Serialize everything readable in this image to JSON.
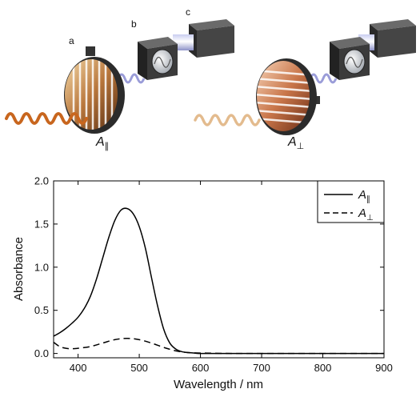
{
  "illustration": {
    "labels": {
      "a": "a",
      "b": "b",
      "c": "c"
    },
    "panels": [
      {
        "symbol": "A",
        "subscript": "∥",
        "wave_color": "#c8661e"
      },
      {
        "symbol": "A",
        "subscript": "⊥",
        "wave_color": "#e3bb8e"
      }
    ]
  },
  "chart_data": {
    "type": "line",
    "title": "",
    "xlabel": "Wavelength / nm",
    "ylabel": "Absorbance",
    "xlim": [
      360,
      900
    ],
    "ylim": [
      -0.05,
      2.0
    ],
    "xticks": [
      400,
      500,
      600,
      700,
      800,
      900
    ],
    "yticks": [
      0.0,
      0.5,
      1.0,
      1.5,
      2.0
    ],
    "ytick_labels": [
      "0.0",
      "0.5",
      "1.0",
      "1.5",
      "2.0"
    ],
    "legend_position": "top-right",
    "series": [
      {
        "name": "A∥",
        "legend_symbol": "A",
        "legend_subscript": "∥",
        "style": "solid",
        "x": [
          360,
          370,
          380,
          390,
          400,
          410,
          420,
          430,
          440,
          450,
          460,
          470,
          480,
          490,
          500,
          510,
          520,
          530,
          540,
          550,
          560,
          570,
          580,
          590,
          600,
          650,
          700,
          750,
          800,
          850,
          900
        ],
        "y": [
          0.2,
          0.24,
          0.29,
          0.35,
          0.42,
          0.52,
          0.66,
          0.86,
          1.1,
          1.34,
          1.54,
          1.66,
          1.68,
          1.62,
          1.47,
          1.22,
          0.88,
          0.55,
          0.28,
          0.12,
          0.05,
          0.02,
          0.01,
          0.005,
          0.0,
          0.0,
          0.0,
          0.0,
          0.0,
          0.0,
          0.0
        ]
      },
      {
        "name": "A⊥",
        "legend_symbol": "A",
        "legend_subscript": "⊥",
        "style": "dashed",
        "x": [
          360,
          370,
          380,
          390,
          400,
          420,
          440,
          460,
          480,
          500,
          520,
          540,
          560,
          580,
          600,
          650,
          700,
          750,
          800,
          850,
          900
        ],
        "y": [
          0.13,
          0.08,
          0.06,
          0.055,
          0.06,
          0.08,
          0.12,
          0.16,
          0.175,
          0.16,
          0.12,
          0.07,
          0.03,
          0.01,
          0.005,
          0.0,
          0.0,
          0.0,
          0.0,
          0.0,
          0.0
        ]
      }
    ]
  }
}
